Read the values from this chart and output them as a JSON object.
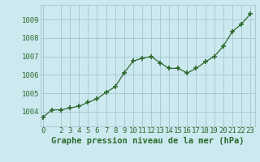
{
  "x": [
    0,
    1,
    2,
    3,
    4,
    5,
    6,
    7,
    8,
    9,
    10,
    11,
    12,
    13,
    14,
    15,
    16,
    17,
    18,
    19,
    20,
    21,
    22,
    23
  ],
  "y": [
    1003.7,
    1004.1,
    1004.1,
    1004.2,
    1004.3,
    1004.5,
    1004.7,
    1005.05,
    1005.35,
    1006.1,
    1006.75,
    1006.9,
    1007.0,
    1006.65,
    1006.35,
    1006.35,
    1006.1,
    1006.35,
    1006.7,
    1007.0,
    1007.55,
    1008.35,
    1008.75,
    1009.3
  ],
  "line_color": "#2d6a2d",
  "marker": "+",
  "marker_size": 4,
  "marker_linewidth": 1.2,
  "bg_color": "#cce9f0",
  "grid_color": "#aac8d0",
  "tick_label_color": "#2d6a2d",
  "xlabel": "Graphe pression niveau de la mer (hPa)",
  "xlabel_color": "#2d6a2d",
  "xlabel_fontsize": 7.5,
  "ylim": [
    1003.2,
    1009.8
  ],
  "yticks": [
    1004,
    1005,
    1006,
    1007,
    1008,
    1009
  ],
  "xticks": [
    0,
    2,
    3,
    4,
    5,
    6,
    7,
    8,
    9,
    10,
    11,
    12,
    13,
    14,
    15,
    16,
    17,
    18,
    19,
    20,
    21,
    22,
    23
  ],
  "xlim": [
    -0.3,
    23.5
  ],
  "tick_fontsize": 6.5
}
